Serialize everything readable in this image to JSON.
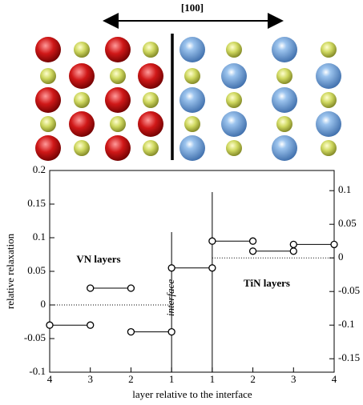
{
  "structure": {
    "direction_label": "[100]"
  },
  "chart_data": {
    "type": "step-segments",
    "categories": [
      "4",
      "3",
      "2",
      "1",
      "1",
      "2",
      "3",
      "4"
    ],
    "series": [
      {
        "name": "VN layers",
        "color": "#000000",
        "values": [
          -0.03,
          0.025,
          -0.04,
          0.055,
          null,
          null,
          null,
          null
        ]
      },
      {
        "name": "TiN layers",
        "color": "#000000",
        "axis": "y2",
        "values": [
          null,
          null,
          null,
          null,
          0.025,
          0.01,
          0.02,
          null
        ]
      }
    ],
    "ylim": [
      -0.1,
      0.2
    ],
    "yticks": [
      -0.1,
      -0.05,
      0,
      0.05,
      0.1,
      0.15,
      0.2
    ],
    "y2lim": [
      -0.17,
      0.13
    ],
    "y2ticks": [
      -0.15,
      -0.1,
      -0.05,
      0,
      0.05,
      0.1
    ],
    "ylabel": "relative relaxation",
    "xlabel": "layer relative to the interface",
    "annotations": [
      "interface"
    ]
  }
}
